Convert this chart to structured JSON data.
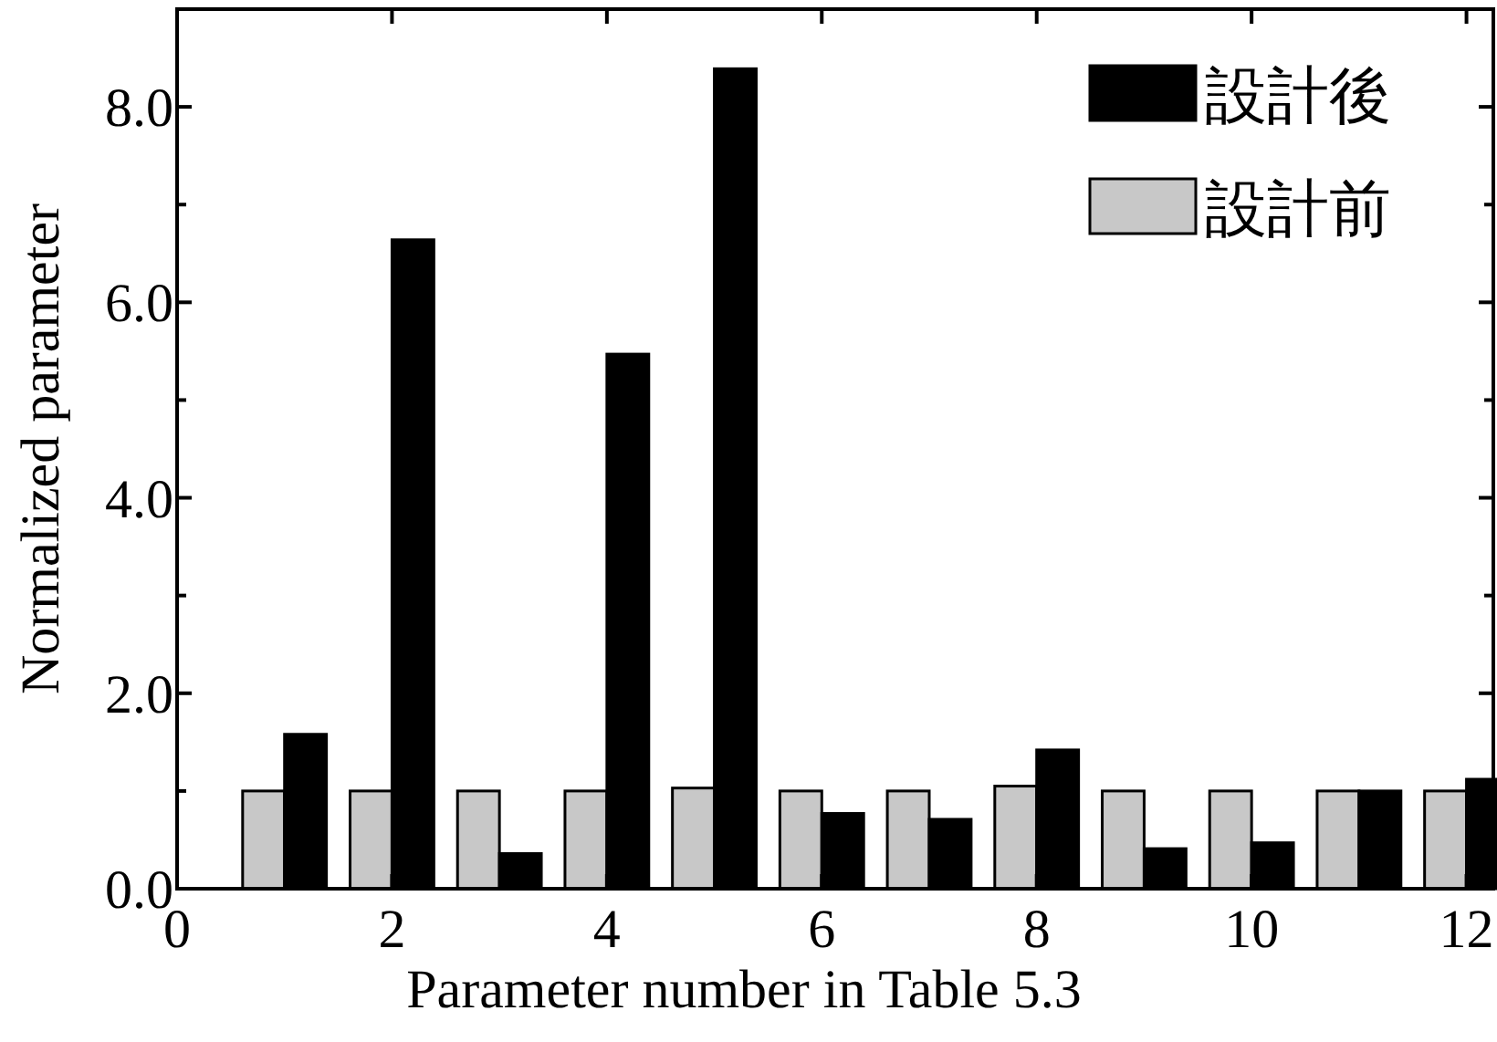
{
  "chart_data": {
    "type": "bar",
    "xlabel": "Parameter number in Table 5.3",
    "ylabel": "Normalized parameter",
    "x": [
      1,
      2,
      3,
      4,
      5,
      6,
      7,
      8,
      9,
      10,
      11,
      12
    ],
    "series": [
      {
        "name": "設計前",
        "color": "#c8c8c8",
        "values": [
          1.0,
          1.0,
          1.0,
          1.0,
          1.03,
          1.0,
          1.0,
          1.05,
          1.0,
          1.0,
          1.0,
          1.0
        ]
      },
      {
        "name": "設計後",
        "color": "#000000",
        "values": [
          1.58,
          6.64,
          0.36,
          5.47,
          8.39,
          0.77,
          0.71,
          1.42,
          0.41,
          0.47,
          1.0,
          1.12
        ]
      }
    ],
    "xlim": [
      0,
      12.25
    ],
    "xticks": [
      0,
      2,
      4,
      6,
      8,
      10,
      12
    ],
    "ylim": [
      0,
      9
    ],
    "yticks": [
      {
        "value": 0,
        "label": "0.0"
      },
      {
        "value": 1,
        "label": null
      },
      {
        "value": 2,
        "label": "2.0"
      },
      {
        "value": 3,
        "label": null
      },
      {
        "value": 4,
        "label": "4.0"
      },
      {
        "value": 5,
        "label": null
      },
      {
        "value": 6,
        "label": "6.0"
      },
      {
        "value": 7,
        "label": null
      },
      {
        "value": 8,
        "label": "8.0"
      }
    ],
    "grid": false,
    "legend": "top right"
  }
}
